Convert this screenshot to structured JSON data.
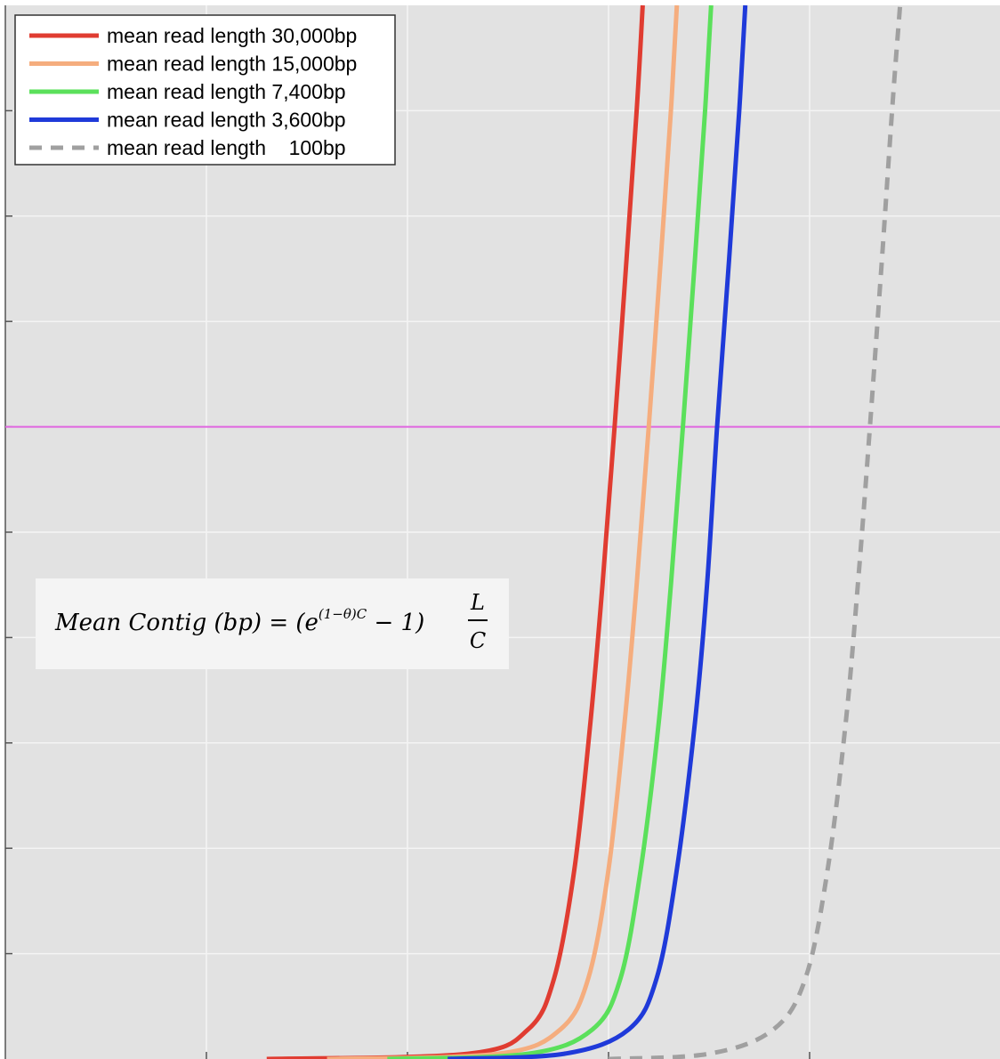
{
  "chart_data": {
    "type": "line",
    "title": "",
    "xlabel": "",
    "ylabel": "",
    "xlim": [
      0,
      5
    ],
    "ylim": [
      0,
      10
    ],
    "grid": true,
    "legend_position": "top-left",
    "x_ticks": [
      1,
      2,
      3,
      4
    ],
    "y_ticks": [
      1,
      2,
      3,
      4,
      5,
      6,
      7,
      8,
      9
    ],
    "threshold_line": {
      "y": 6,
      "color": "#e066e0"
    },
    "formula": {
      "lhs": "Mean Contig (bp) = (e",
      "exponent": "(1−θ)C",
      "rhs": " − 1)",
      "numerator": "L",
      "denominator": "C"
    },
    "series": [
      {
        "name": "mean read length 30,000bp",
        "color": "#e03c31",
        "style": "solid",
        "points": [
          [
            1.3,
            0
          ],
          [
            2.3,
            0.05
          ],
          [
            2.6,
            0.28
          ],
          [
            2.73,
            0.77
          ],
          [
            2.83,
            1.8
          ],
          [
            2.91,
            3.2
          ],
          [
            2.97,
            4.5
          ],
          [
            3.03,
            6
          ],
          [
            3.09,
            7.6
          ],
          [
            3.14,
            9
          ],
          [
            3.17,
            10
          ]
        ]
      },
      {
        "name": "mean read length 15,000bp",
        "color": "#f5ad7e",
        "style": "solid",
        "points": [
          [
            1.6,
            0
          ],
          [
            2.45,
            0.05
          ],
          [
            2.76,
            0.28
          ],
          [
            2.9,
            0.77
          ],
          [
            3.0,
            1.8
          ],
          [
            3.08,
            3.2
          ],
          [
            3.14,
            4.5
          ],
          [
            3.2,
            6
          ],
          [
            3.26,
            7.6
          ],
          [
            3.31,
            9
          ],
          [
            3.34,
            10
          ]
        ]
      },
      {
        "name": "mean read length 7,400bp",
        "color": "#5be05b",
        "style": "solid",
        "points": [
          [
            1.9,
            0
          ],
          [
            2.6,
            0.05
          ],
          [
            2.92,
            0.28
          ],
          [
            3.06,
            0.77
          ],
          [
            3.16,
            1.8
          ],
          [
            3.25,
            3.2
          ],
          [
            3.31,
            4.5
          ],
          [
            3.37,
            6
          ],
          [
            3.43,
            7.6
          ],
          [
            3.48,
            9
          ],
          [
            3.51,
            10
          ]
        ]
      },
      {
        "name": "mean read length 3,600bp",
        "color": "#1f3ad9",
        "style": "solid",
        "points": [
          [
            2.2,
            0
          ],
          [
            2.78,
            0.05
          ],
          [
            3.1,
            0.28
          ],
          [
            3.24,
            0.77
          ],
          [
            3.34,
            1.8
          ],
          [
            3.43,
            3.2
          ],
          [
            3.49,
            4.5
          ],
          [
            3.54,
            6
          ],
          [
            3.6,
            7.6
          ],
          [
            3.65,
            9
          ],
          [
            3.68,
            10
          ]
        ]
      },
      {
        "name": "mean read length    100bp",
        "color": "#a0a0a0",
        "style": "dashed",
        "points": [
          [
            3.0,
            0
          ],
          [
            3.5,
            0.05
          ],
          [
            3.82,
            0.28
          ],
          [
            3.98,
            0.77
          ],
          [
            4.09,
            1.8
          ],
          [
            4.18,
            3.2
          ],
          [
            4.24,
            4.5
          ],
          [
            4.3,
            6
          ],
          [
            4.36,
            7.6
          ],
          [
            4.41,
            9
          ],
          [
            4.45,
            10
          ]
        ]
      }
    ]
  }
}
